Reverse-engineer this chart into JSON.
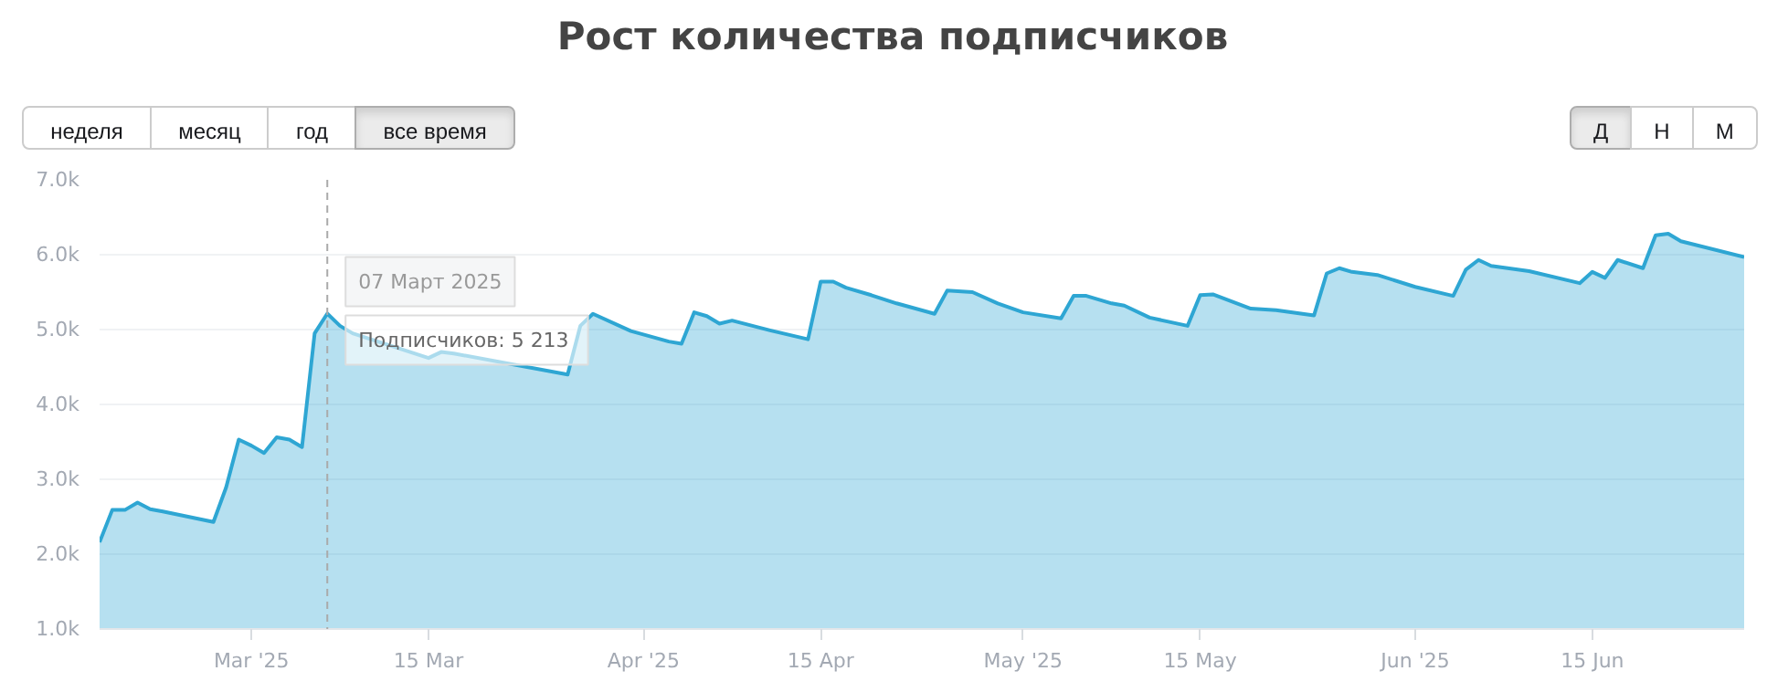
{
  "chart_data": {
    "type": "area",
    "title": "Рост количества подписчиков",
    "x": [
      "2025-02-17",
      "2025-02-18",
      "2025-02-19",
      "2025-02-20",
      "2025-02-21",
      "2025-02-22",
      "2025-02-24",
      "2025-02-26",
      "2025-02-27",
      "2025-02-28",
      "2025-03-01",
      "2025-03-02",
      "2025-03-03",
      "2025-03-04",
      "2025-03-05",
      "2025-03-06",
      "2025-03-07",
      "2025-03-08",
      "2025-03-09",
      "2025-03-15",
      "2025-03-16",
      "2025-03-17",
      "2025-03-26",
      "2025-03-27",
      "2025-03-28",
      "2025-03-31",
      "2025-04-03",
      "2025-04-04",
      "2025-04-05",
      "2025-04-06",
      "2025-04-07",
      "2025-04-08",
      "2025-04-11",
      "2025-04-14",
      "2025-04-15",
      "2025-04-16",
      "2025-04-17",
      "2025-04-19",
      "2025-04-21",
      "2025-04-24",
      "2025-04-25",
      "2025-04-27",
      "2025-04-29",
      "2025-05-01",
      "2025-05-04",
      "2025-05-05",
      "2025-05-06",
      "2025-05-08",
      "2025-05-09",
      "2025-05-11",
      "2025-05-14",
      "2025-05-15",
      "2025-05-16",
      "2025-05-19",
      "2025-05-21",
      "2025-05-24",
      "2025-05-25",
      "2025-05-26",
      "2025-05-27",
      "2025-05-29",
      "2025-06-01",
      "2025-06-04",
      "2025-06-05",
      "2025-06-06",
      "2025-06-07",
      "2025-06-10",
      "2025-06-14",
      "2025-06-15",
      "2025-06-16",
      "2025-06-17",
      "2025-06-19",
      "2025-06-20",
      "2025-06-21",
      "2025-06-22",
      "2025-06-27"
    ],
    "series": [
      {
        "color": "#2ea6d3",
        "values": [
          2160,
          2590,
          2590,
          2690,
          2600,
          2570,
          2500,
          2430,
          2890,
          3530,
          3450,
          3350,
          3560,
          3530,
          3430,
          4950,
          5213,
          5050,
          4950,
          4620,
          4700,
          4680,
          4400,
          5050,
          5210,
          4980,
          4840,
          4810,
          5230,
          5180,
          5080,
          5120,
          4990,
          4870,
          5640,
          5640,
          5560,
          5460,
          5350,
          5210,
          5520,
          5500,
          5350,
          5230,
          5150,
          5450,
          5450,
          5350,
          5320,
          5160,
          5050,
          5460,
          5470,
          5280,
          5260,
          5190,
          5750,
          5820,
          5770,
          5730,
          5570,
          5450,
          5800,
          5930,
          5850,
          5780,
          5620,
          5770,
          5690,
          5930,
          5820,
          6260,
          6280,
          6180,
          5970
        ]
      }
    ],
    "xlim": [
      "2025-02-17",
      "2025-06-27"
    ],
    "xticks": [
      {
        "value": "2025-03-01",
        "label": "Mar '25"
      },
      {
        "value": "2025-03-15",
        "label": "15 Mar"
      },
      {
        "value": "2025-04-01",
        "label": "Apr '25"
      },
      {
        "value": "2025-04-15",
        "label": "15 Apr"
      },
      {
        "value": "2025-05-01",
        "label": "May '25"
      },
      {
        "value": "2025-05-15",
        "label": "15 May"
      },
      {
        "value": "2025-06-01",
        "label": "Jun '25"
      },
      {
        "value": "2025-06-15",
        "label": "15 Jun"
      }
    ],
    "ylim": [
      1000,
      7000
    ],
    "yticks": [
      {
        "value": 1000,
        "label": "1.0k"
      },
      {
        "value": 2000,
        "label": "2.0k"
      },
      {
        "value": 3000,
        "label": "3.0k"
      },
      {
        "value": 4000,
        "label": "4.0k"
      },
      {
        "value": 5000,
        "label": "5.0k"
      },
      {
        "value": 6000,
        "label": "6.0k"
      },
      {
        "value": 7000,
        "label": "7.0k"
      }
    ],
    "grid": "y",
    "ref_lines": [
      {
        "axis": "x",
        "value": "2025-03-07",
        "color": "#aaaaaa",
        "line_style": "dashed"
      }
    ],
    "annotations": [
      "неделя",
      "месяц",
      "год",
      "все время",
      "Д",
      "Н",
      "М",
      {
        "text": "07 Март 2025",
        "x": "2025-03-07",
        "y": 5213
      },
      {
        "text": "Подписчиков:  5 213",
        "x": "2025-03-07",
        "y": 5213
      }
    ]
  }
}
